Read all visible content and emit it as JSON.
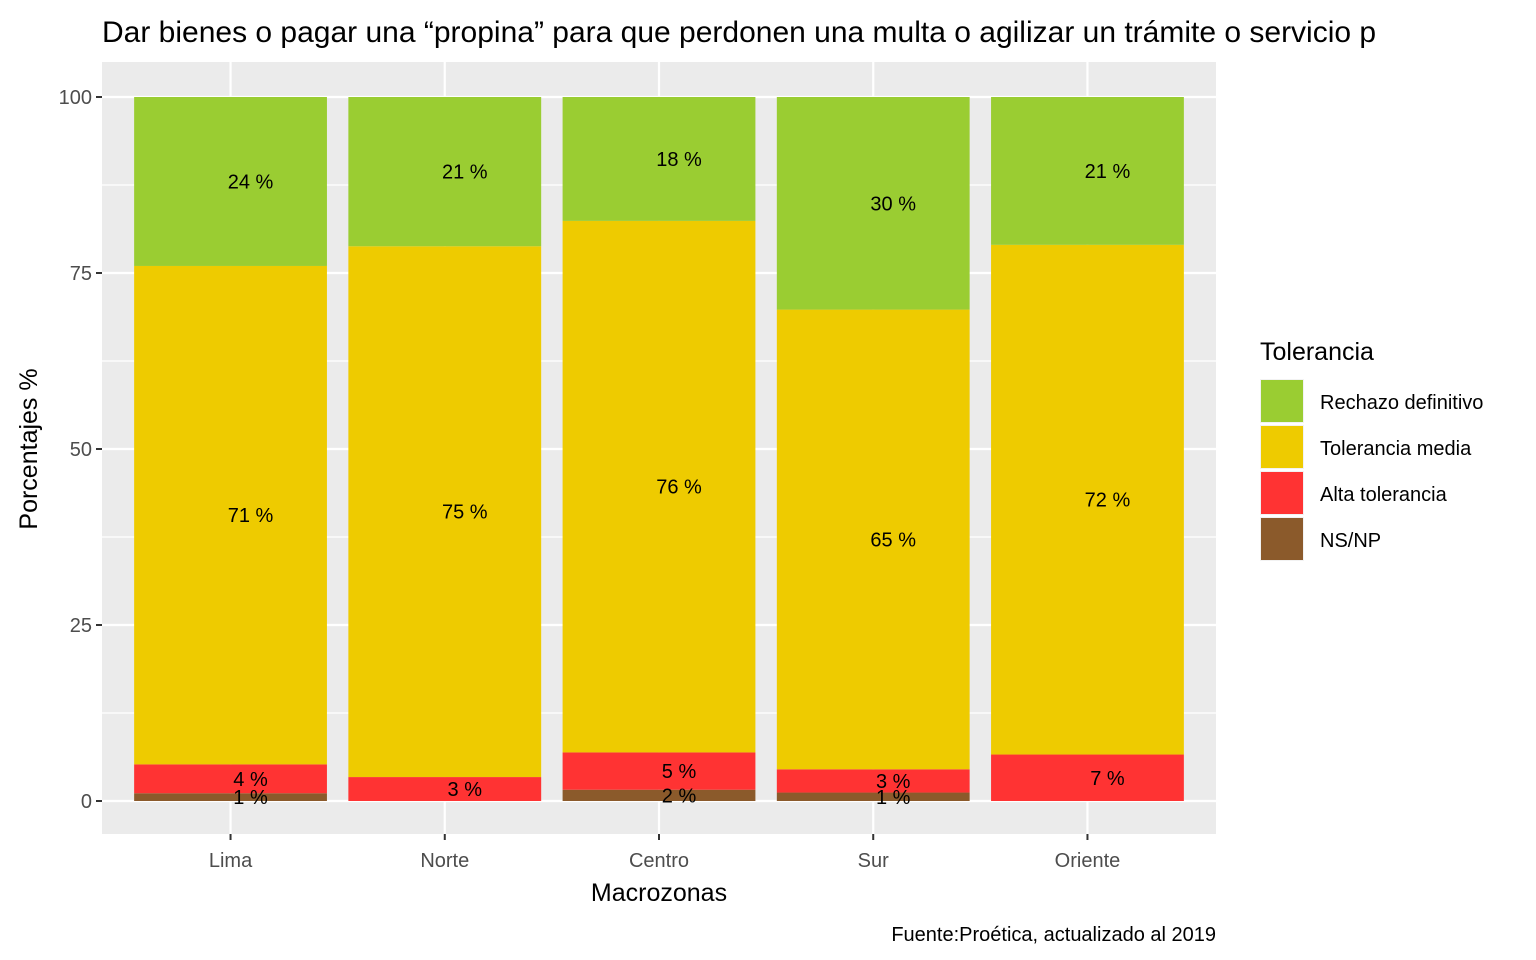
{
  "chart_data": {
    "type": "bar",
    "stacked": true,
    "title": "Dar bienes o pagar una “propina” para que perdonen una multa o agilizar un trámite o servicio p",
    "xlabel": "Macrozonas",
    "ylabel": "Porcentajes %",
    "caption": "Fuente:Proética, actualizado al 2019",
    "ylim": [
      0,
      100
    ],
    "yticks": [
      "0",
      "25",
      "50",
      "75",
      "100"
    ],
    "categories": [
      "Lima",
      "Norte",
      "Centro",
      "Sur",
      "Oriente"
    ],
    "legend": {
      "title": "Tolerancia",
      "position": "right"
    },
    "grid": true,
    "series": [
      {
        "name": "NS/NP",
        "color": "#8B5A2B",
        "values": [
          1.1,
          0,
          1.6,
          1.2,
          0
        ],
        "labels": [
          "1 %",
          "",
          "2 %",
          "1 %",
          ""
        ]
      },
      {
        "name": "Alta tolerancia",
        "color": "#FF3333",
        "values": [
          4.1,
          3.4,
          5.3,
          3.3,
          6.6
        ],
        "labels": [
          "4 %",
          "3 %",
          "5 %",
          "3 %",
          "7 %"
        ]
      },
      {
        "name": "Tolerancia media",
        "color": "#EECB00",
        "values": [
          70.8,
          75.4,
          75.5,
          65.3,
          72.4
        ],
        "labels": [
          "71 %",
          "75 %",
          "76 %",
          "65 %",
          "72 %"
        ]
      },
      {
        "name": "Rechazo definitivo",
        "color": "#9ACD32",
        "values": [
          24.0,
          21.2,
          17.6,
          30.2,
          21.0
        ],
        "labels": [
          "24 %",
          "21 %",
          "18 %",
          "30 %",
          "21 %"
        ]
      }
    ],
    "legend_order": [
      "Rechazo definitivo",
      "Tolerancia media",
      "Alta tolerancia",
      "NS/NP"
    ]
  }
}
